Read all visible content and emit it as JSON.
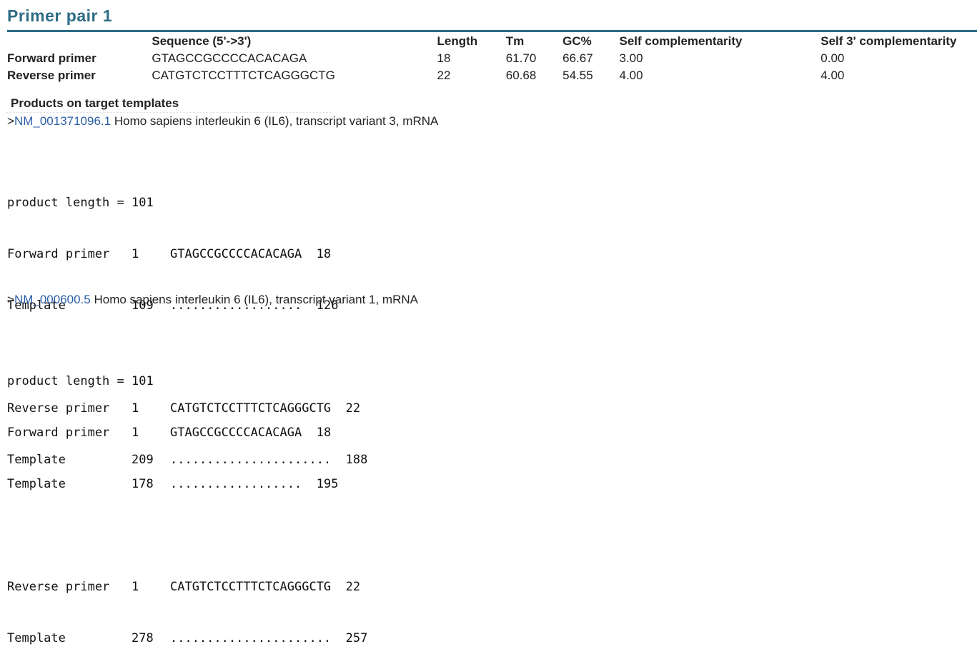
{
  "title": "Primer pair 1",
  "table": {
    "headers": [
      "",
      "Sequence (5'->3')",
      "Length",
      "Tm",
      "GC%",
      "Self complementarity",
      "Self 3' complementarity"
    ],
    "rows": [
      {
        "label": "Forward primer",
        "sequence": "GTAGCCGCCCCACACAGA",
        "length": "18",
        "tm": "61.70",
        "gc": "66.67",
        "self": "3.00",
        "self3": "0.00"
      },
      {
        "label": "Reverse primer",
        "sequence": "CATGTCTCCTTTCTCAGGGCTG",
        "length": "22",
        "tm": "60.68",
        "gc": "54.55",
        "self": "4.00",
        "self3": "4.00"
      }
    ]
  },
  "products_heading": "Products on target templates",
  "templates": [
    {
      "prefix": ">",
      "accession": "NM_001371096.1",
      "description": " Homo sapiens interleukin 6 (IL6), transcript variant 3, mRNA",
      "product_length": "product length = 101",
      "forward": {
        "label": "Forward primer",
        "start": "1",
        "seq": "GTAGCCGCCCCACACAGA",
        "end": "18"
      },
      "forward_template": {
        "label": "Template",
        "start": "109",
        "seq": "..................",
        "end": "126"
      },
      "reverse": {
        "label": "Reverse primer",
        "start": "1",
        "seq": "CATGTCTCCTTTCTCAGGGCTG",
        "end": "22"
      },
      "reverse_template": {
        "label": "Template",
        "start": "209",
        "seq": "......................",
        "end": "188"
      }
    },
    {
      "prefix": ">",
      "accession": "NM_000600.5",
      "description": " Homo sapiens interleukin 6 (IL6), transcript variant 1, mRNA",
      "product_length": "product length = 101",
      "forward": {
        "label": "Forward primer",
        "start": "1",
        "seq": "GTAGCCGCCCCACACAGA",
        "end": "18"
      },
      "forward_template": {
        "label": "Template",
        "start": "178",
        "seq": "..................",
        "end": "195"
      },
      "reverse": {
        "label": "Reverse primer",
        "start": "1",
        "seq": "CATGTCTCCTTTCTCAGGGCTG",
        "end": "22"
      },
      "reverse_template": {
        "label": "Template",
        "start": "278",
        "seq": "......................",
        "end": "257"
      }
    }
  ],
  "colors": {
    "title": "#2e6d86",
    "link": "#2b5fa8"
  }
}
